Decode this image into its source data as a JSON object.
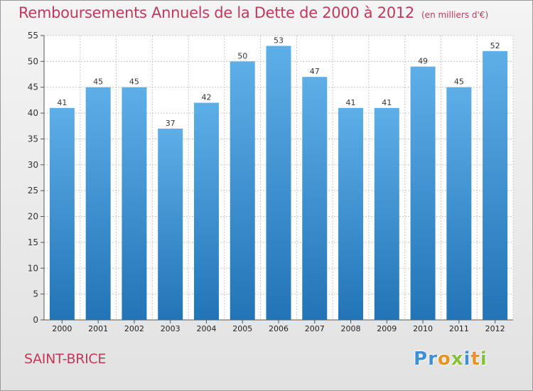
{
  "header": {
    "title": "Remboursements Annuels de la Dette de 2000 à 2012",
    "unit": "(en milliers d'€)"
  },
  "footer": {
    "city": "SAINT-BRICE",
    "logo_letters": [
      {
        "ch": "P",
        "color": "#3f8fd6"
      },
      {
        "ch": "r",
        "color": "#3f8fd6"
      },
      {
        "ch": "o",
        "color": "#e8941f"
      },
      {
        "ch": "x",
        "color": "#86c33b"
      },
      {
        "ch": "i",
        "color": "#3f8fd6"
      },
      {
        "ch": "t",
        "color": "#e8941f"
      },
      {
        "ch": "i",
        "color": "#86c33b"
      }
    ]
  },
  "colors": {
    "title": "#c0395b",
    "bar_top": "#5eaee8",
    "bar_bottom": "#2274b6"
  },
  "chart_data": {
    "type": "bar",
    "title": "Remboursements Annuels de la Dette de 2000 à 2012",
    "categories": [
      "2000",
      "2001",
      "2002",
      "2003",
      "2004",
      "2005",
      "2006",
      "2007",
      "2008",
      "2009",
      "2010",
      "2011",
      "2012"
    ],
    "values": [
      41,
      45,
      45,
      37,
      42,
      50,
      53,
      47,
      41,
      41,
      49,
      45,
      52
    ],
    "ylim": [
      0,
      55
    ],
    "yticks": [
      0,
      5,
      10,
      15,
      20,
      25,
      30,
      35,
      40,
      45,
      50,
      55
    ],
    "grid": true,
    "data_labels": true
  }
}
